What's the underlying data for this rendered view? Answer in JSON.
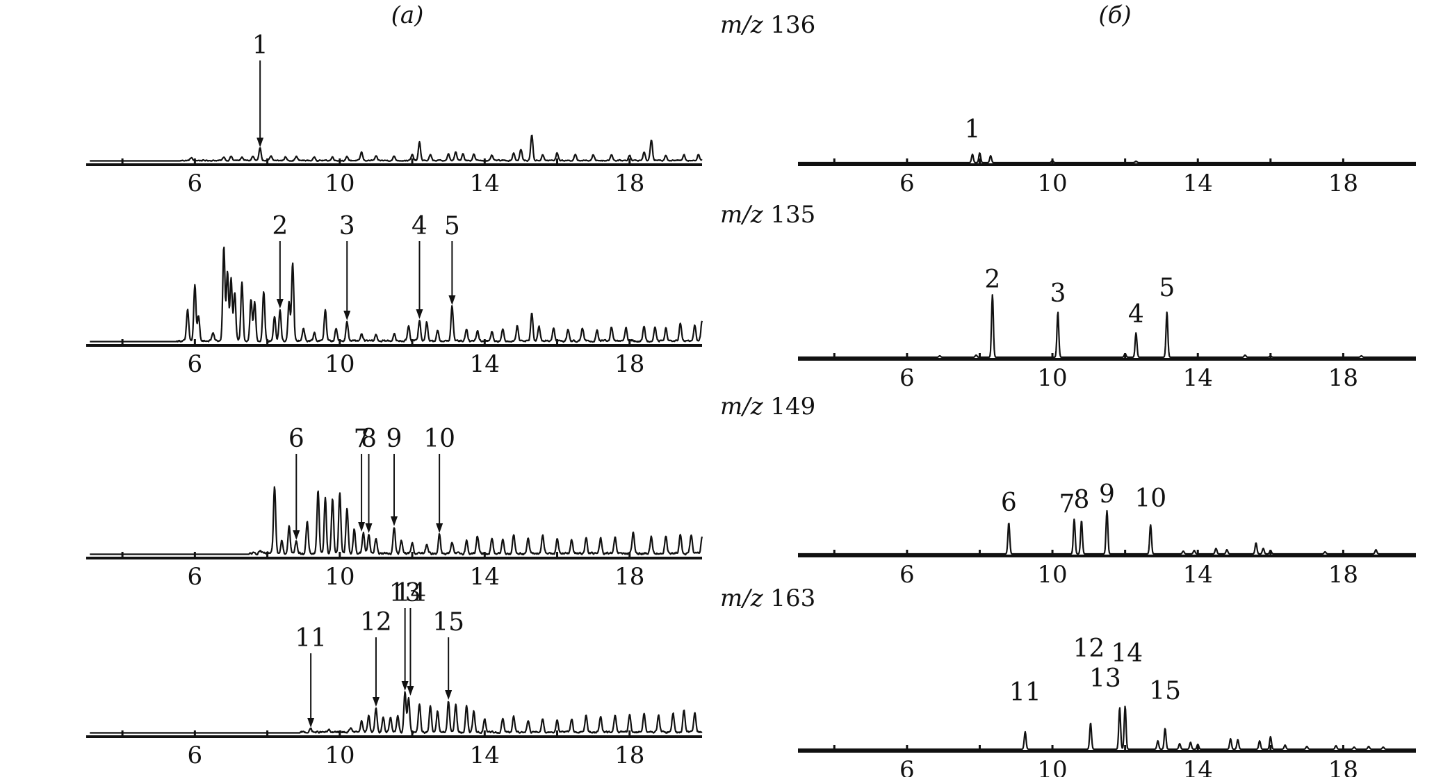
{
  "colors": {
    "ink": "#111111",
    "background": "#ffffff"
  },
  "panels": [
    {
      "id": "a",
      "label": "(a)"
    },
    {
      "id": "b",
      "label": "(б)"
    }
  ],
  "chart_data": [
    {
      "panel": "a",
      "row": 0,
      "type": "line",
      "xlim": [
        3,
        20
      ],
      "xticks_major": [
        6,
        10,
        14,
        18
      ],
      "xticks_minor": [
        4,
        8,
        12,
        16
      ],
      "baseline": 2.5,
      "peaks": [
        [
          5.9,
          4
        ],
        [
          6.8,
          5
        ],
        [
          7.0,
          6
        ],
        [
          7.3,
          5
        ],
        [
          7.6,
          6
        ],
        [
          7.8,
          17
        ],
        [
          8.1,
          6
        ],
        [
          8.5,
          5
        ],
        [
          8.8,
          6
        ],
        [
          9.3,
          5
        ],
        [
          9.8,
          5
        ],
        [
          10.2,
          5
        ],
        [
          10.6,
          12
        ],
        [
          11.0,
          6
        ],
        [
          11.5,
          6
        ],
        [
          12.0,
          8
        ],
        [
          12.2,
          26
        ],
        [
          12.5,
          8
        ],
        [
          13.0,
          9
        ],
        [
          13.2,
          12
        ],
        [
          13.4,
          10
        ],
        [
          13.7,
          9
        ],
        [
          14.2,
          7
        ],
        [
          14.8,
          11
        ],
        [
          15.0,
          16
        ],
        [
          15.3,
          37
        ],
        [
          15.6,
          8
        ],
        [
          16.0,
          11
        ],
        [
          16.5,
          8
        ],
        [
          17.0,
          8
        ],
        [
          17.5,
          9
        ],
        [
          18.0,
          8
        ],
        [
          18.4,
          12
        ],
        [
          18.6,
          30
        ],
        [
          19.0,
          8
        ],
        [
          19.5,
          9
        ],
        [
          19.9,
          9
        ]
      ],
      "noise": 1.5,
      "arrows": [
        {
          "label": "1",
          "x": 7.8,
          "y": 18
        }
      ]
    },
    {
      "panel": "a",
      "row": 1,
      "type": "line",
      "xlim": [
        3,
        20
      ],
      "xticks_major": [
        6,
        10,
        14,
        18
      ],
      "xticks_minor": [
        4,
        8,
        12,
        16
      ],
      "baseline": 2.5,
      "peaks": [
        [
          5.8,
          45
        ],
        [
          6.0,
          80
        ],
        [
          6.1,
          35
        ],
        [
          6.5,
          12
        ],
        [
          6.8,
          135
        ],
        [
          6.9,
          100
        ],
        [
          7.0,
          90
        ],
        [
          7.1,
          70
        ],
        [
          7.3,
          85
        ],
        [
          7.55,
          60
        ],
        [
          7.65,
          55
        ],
        [
          7.9,
          70
        ],
        [
          8.2,
          35
        ],
        [
          8.35,
          45
        ],
        [
          8.6,
          55
        ],
        [
          8.7,
          112
        ],
        [
          9.0,
          18
        ],
        [
          9.3,
          12
        ],
        [
          9.6,
          45
        ],
        [
          9.9,
          18
        ],
        [
          10.2,
          28
        ],
        [
          10.6,
          10
        ],
        [
          11.0,
          9
        ],
        [
          11.5,
          10
        ],
        [
          11.9,
          22
        ],
        [
          12.2,
          30
        ],
        [
          12.4,
          28
        ],
        [
          12.7,
          14
        ],
        [
          13.1,
          50
        ],
        [
          13.5,
          16
        ],
        [
          13.8,
          15
        ],
        [
          14.2,
          14
        ],
        [
          14.5,
          16
        ],
        [
          14.9,
          22
        ],
        [
          15.3,
          40
        ],
        [
          15.5,
          20
        ],
        [
          15.9,
          18
        ],
        [
          16.3,
          16
        ],
        [
          16.7,
          18
        ],
        [
          17.1,
          16
        ],
        [
          17.5,
          20
        ],
        [
          17.9,
          18
        ],
        [
          18.4,
          20
        ],
        [
          18.7,
          20
        ],
        [
          19.0,
          18
        ],
        [
          19.4,
          25
        ],
        [
          19.8,
          22
        ],
        [
          20.0,
          28
        ]
      ],
      "noise": 2.5,
      "arrows": [
        {
          "label": "2",
          "x": 8.35,
          "y": 46
        },
        {
          "label": "3",
          "x": 10.2,
          "y": 29
        },
        {
          "label": "4",
          "x": 12.2,
          "y": 31
        },
        {
          "label": "5",
          "x": 13.1,
          "y": 51
        }
      ]
    },
    {
      "panel": "a",
      "row": 2,
      "type": "line",
      "xlim": [
        3,
        20
      ],
      "xticks_major": [
        6,
        10,
        14,
        18
      ],
      "xticks_minor": [
        4,
        8,
        12,
        16
      ],
      "baseline": 2.5,
      "peaks": [
        [
          7.8,
          4
        ],
        [
          8.2,
          95
        ],
        [
          8.4,
          20
        ],
        [
          8.6,
          40
        ],
        [
          8.8,
          18
        ],
        [
          9.1,
          45
        ],
        [
          9.4,
          90
        ],
        [
          9.6,
          80
        ],
        [
          9.8,
          80
        ],
        [
          10.0,
          88
        ],
        [
          10.2,
          65
        ],
        [
          10.4,
          35
        ],
        [
          10.65,
          30
        ],
        [
          10.8,
          28
        ],
        [
          11.0,
          22
        ],
        [
          11.5,
          38
        ],
        [
          11.7,
          18
        ],
        [
          12.0,
          15
        ],
        [
          12.4,
          12
        ],
        [
          12.75,
          28
        ],
        [
          13.1,
          15
        ],
        [
          13.5,
          18
        ],
        [
          13.8,
          25
        ],
        [
          14.2,
          22
        ],
        [
          14.5,
          20
        ],
        [
          14.8,
          28
        ],
        [
          15.2,
          22
        ],
        [
          15.6,
          26
        ],
        [
          16.0,
          22
        ],
        [
          16.4,
          20
        ],
        [
          16.8,
          24
        ],
        [
          17.2,
          22
        ],
        [
          17.6,
          22
        ],
        [
          18.1,
          30
        ],
        [
          18.6,
          24
        ],
        [
          19.0,
          26
        ],
        [
          19.4,
          28
        ],
        [
          19.7,
          26
        ],
        [
          20.0,
          24
        ]
      ],
      "noise": 3,
      "arrows": [
        {
          "label": "6",
          "x": 8.8,
          "y": 19
        },
        {
          "label": "7",
          "x": 10.6,
          "y": 31
        },
        {
          "label": "8",
          "x": 10.8,
          "y": 29
        },
        {
          "label": "9",
          "x": 11.5,
          "y": 39
        },
        {
          "label": "10",
          "x": 12.75,
          "y": 29
        }
      ]
    },
    {
      "panel": "a",
      "row": 3,
      "type": "line",
      "xlim": [
        3,
        20
      ],
      "xticks_major": [
        6,
        10,
        14,
        18
      ],
      "xticks_minor": [
        4,
        8,
        12,
        16
      ],
      "baseline": 2.5,
      "peaks": [
        [
          9.2,
          5
        ],
        [
          9.7,
          3
        ],
        [
          10.3,
          6
        ],
        [
          10.6,
          15
        ],
        [
          10.8,
          25
        ],
        [
          11.0,
          35
        ],
        [
          11.2,
          22
        ],
        [
          11.4,
          20
        ],
        [
          11.6,
          25
        ],
        [
          11.8,
          58
        ],
        [
          11.9,
          50
        ],
        [
          12.2,
          40
        ],
        [
          12.5,
          38
        ],
        [
          12.7,
          30
        ],
        [
          13.0,
          45
        ],
        [
          13.2,
          40
        ],
        [
          13.5,
          38
        ],
        [
          13.7,
          30
        ],
        [
          14.0,
          18
        ],
        [
          14.5,
          20
        ],
        [
          14.8,
          22
        ],
        [
          15.2,
          18
        ],
        [
          15.6,
          20
        ],
        [
          16.0,
          18
        ],
        [
          16.4,
          20
        ],
        [
          16.8,
          25
        ],
        [
          17.2,
          22
        ],
        [
          17.6,
          25
        ],
        [
          18.0,
          25
        ],
        [
          18.4,
          28
        ],
        [
          18.8,
          25
        ],
        [
          19.2,
          28
        ],
        [
          19.5,
          32
        ],
        [
          19.8,
          28
        ]
      ],
      "noise": 2.5,
      "arrows": [
        {
          "label": "11",
          "x": 9.2,
          "y": 6
        },
        {
          "label": "12",
          "x": 11.0,
          "y": 36
        },
        {
          "label": "13",
          "x": 11.8,
          "y": 59
        },
        {
          "label": "14",
          "x": 11.95,
          "y": 52
        },
        {
          "label": "15",
          "x": 13.0,
          "y": 46
        }
      ]
    },
    {
      "panel": "b",
      "row": 0,
      "type": "line",
      "mz": "136",
      "xlim": [
        3,
        20
      ],
      "xticks_major": [
        6,
        10,
        14,
        18
      ],
      "xticks_minor": [
        4,
        8,
        12,
        16
      ],
      "baseline": 0,
      "peaks": [
        [
          7.8,
          12
        ],
        [
          8.0,
          14
        ],
        [
          8.3,
          10
        ],
        [
          10.0,
          3
        ],
        [
          12.3,
          2
        ]
      ],
      "noise": 0,
      "labels": [
        {
          "label": "1",
          "x": 7.8,
          "y": 36
        }
      ]
    },
    {
      "panel": "b",
      "row": 1,
      "type": "line",
      "mz": "135",
      "xlim": [
        3,
        20
      ],
      "xticks_major": [
        6,
        10,
        14,
        18
      ],
      "xticks_minor": [
        4,
        8,
        12,
        16
      ],
      "baseline": 0,
      "peaks": [
        [
          6.9,
          2
        ],
        [
          7.9,
          3
        ],
        [
          8.35,
          90
        ],
        [
          10.15,
          65
        ],
        [
          12.0,
          5
        ],
        [
          12.3,
          35
        ],
        [
          13.15,
          65
        ],
        [
          15.3,
          3
        ],
        [
          16.0,
          2
        ],
        [
          18.5,
          2
        ]
      ],
      "noise": 0,
      "labels": [
        {
          "label": "2",
          "x": 8.35,
          "y": 100
        },
        {
          "label": "3",
          "x": 10.15,
          "y": 80
        },
        {
          "label": "4",
          "x": 12.3,
          "y": 50
        },
        {
          "label": "5",
          "x": 13.15,
          "y": 88
        }
      ]
    },
    {
      "panel": "b",
      "row": 2,
      "type": "line",
      "mz": "149",
      "xlim": [
        3,
        20
      ],
      "xticks_major": [
        6,
        10,
        14,
        18
      ],
      "xticks_minor": [
        4,
        8,
        12,
        16
      ],
      "baseline": 0,
      "peaks": [
        [
          8.8,
          45
        ],
        [
          10.6,
          50
        ],
        [
          10.8,
          48
        ],
        [
          11.5,
          62
        ],
        [
          12.7,
          42
        ],
        [
          13.6,
          4
        ],
        [
          13.9,
          5
        ],
        [
          14.5,
          8
        ],
        [
          14.8,
          6
        ],
        [
          15.6,
          16
        ],
        [
          15.8,
          8
        ],
        [
          16.0,
          5
        ],
        [
          17.5,
          3
        ],
        [
          18.9,
          6
        ]
      ],
      "noise": 0,
      "labels": [
        {
          "label": "6",
          "x": 8.8,
          "y": 62
        },
        {
          "label": "7",
          "x": 10.4,
          "y": 60
        },
        {
          "label": "8",
          "x": 10.8,
          "y": 66
        },
        {
          "label": "9",
          "x": 11.5,
          "y": 74
        },
        {
          "label": "10",
          "x": 12.7,
          "y": 68
        }
      ]
    },
    {
      "panel": "b",
      "row": 3,
      "type": "line",
      "mz": "163",
      "xlim": [
        3,
        20
      ],
      "xticks_major": [
        6,
        10,
        14,
        18
      ],
      "xticks_minor": [
        4,
        8,
        12,
        16
      ],
      "baseline": 0,
      "peaks": [
        [
          9.25,
          25
        ],
        [
          11.05,
          38
        ],
        [
          11.85,
          60
        ],
        [
          12.0,
          62
        ],
        [
          12.9,
          12
        ],
        [
          13.1,
          30
        ],
        [
          13.5,
          8
        ],
        [
          13.8,
          10
        ],
        [
          14.0,
          7
        ],
        [
          14.9,
          15
        ],
        [
          15.1,
          14
        ],
        [
          15.7,
          12
        ],
        [
          16.0,
          18
        ],
        [
          16.4,
          6
        ],
        [
          17.0,
          4
        ],
        [
          17.8,
          5
        ],
        [
          18.3,
          3
        ],
        [
          18.7,
          4
        ],
        [
          19.1,
          3
        ]
      ],
      "noise": 0,
      "labels": [
        {
          "label": "11",
          "x": 9.25,
          "y": 70
        },
        {
          "label": "12",
          "x": 11.0,
          "y": 133
        },
        {
          "label": "13",
          "x": 11.45,
          "y": 90
        },
        {
          "label": "14",
          "x": 12.05,
          "y": 126
        },
        {
          "label": "15",
          "x": 13.1,
          "y": 72
        }
      ]
    }
  ]
}
